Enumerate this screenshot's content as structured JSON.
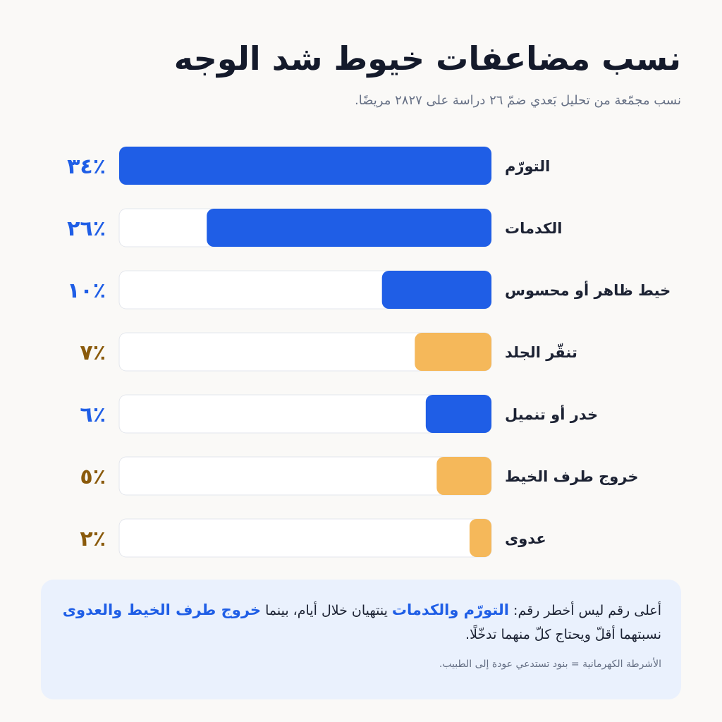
{
  "header": {
    "title": "نسب مضاعفات خيوط شد الوجه",
    "subtitle": "نسب مجمّعة من تحليل بَعدي ضمّ ٢٦ دراسة على ٢٨٢٧ مريضًا."
  },
  "colors": {
    "blue": "#1f5ee6",
    "amber": "#f5b85a",
    "blue_text": "#1f5ee6",
    "amber_text": "#8a5a0b",
    "track": "#ffffff",
    "track_border": "#e3e6ec"
  },
  "chart_data": {
    "type": "bar",
    "orientation": "horizontal",
    "categories": [
      "التورّم",
      "الكدمات",
      "خيط ظاهر أو محسوس",
      "تنقّر الجلد",
      "خدر أو تنميل",
      "خروج طرف الخيط",
      "عدوى"
    ],
    "values": [
      34,
      26,
      10,
      7,
      6,
      5,
      2
    ],
    "value_labels": [
      "٣٤٪",
      "٢٦٪",
      "١٠٪",
      "٧٪",
      "٦٪",
      "٥٪",
      "٢٪"
    ],
    "highlight": [
      false,
      false,
      false,
      true,
      false,
      true,
      true
    ],
    "xlim": [
      0,
      34
    ],
    "unit": "%",
    "grid": false
  },
  "note": {
    "part1": "أعلى رقم ليس أخطر رقم: ",
    "hl1": "التورّم والكدمات",
    "part2": " ينتهيان خلال أيام، بينما ",
    "hl2": "خروج طرف الخيط والعدوى",
    "part3": " نسبتهما أقلّ ويحتاج كلّ منهما تدخّلًا.",
    "legend": "الأشرطة الكهرمانية = بنود تستدعي عودة إلى الطبيب."
  }
}
